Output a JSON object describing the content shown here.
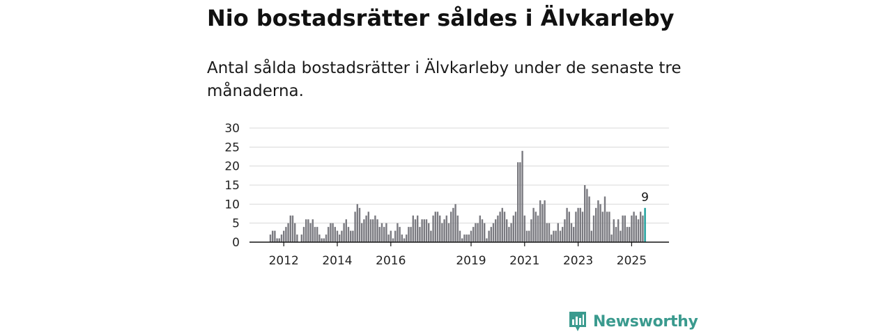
{
  "title": "Nio bostadsrätter såldes i Älvkarleby",
  "subtitle": "Antal sålda bostadsrätter i Älvkarleby under de senaste tre månaderna.",
  "brand": {
    "name": "Newsworthy",
    "icon": "newsworthy-logo-icon",
    "color": "#3a9a8e"
  },
  "colors": {
    "bar": "#7a7a80",
    "highlight": "#1a9e9a",
    "grid": "#d8d8d8",
    "axis": "#111111"
  },
  "chart_data": {
    "type": "bar",
    "title": "Nio bostadsrätter såldes i Älvkarleby",
    "ylabel": "",
    "xlabel": "",
    "ylim": [
      0,
      30
    ],
    "yticks": [
      0,
      5,
      10,
      15,
      20,
      25,
      30
    ],
    "xtick_labels": [
      "2012",
      "2014",
      "2016",
      "2019",
      "2021",
      "2023",
      "2025"
    ],
    "xtick_index": [
      6,
      30,
      54,
      90,
      114,
      138,
      162
    ],
    "values": [
      2,
      3,
      3,
      1,
      1,
      2,
      3,
      4,
      5,
      7,
      7,
      5,
      2,
      0,
      2,
      4,
      6,
      6,
      5,
      6,
      4,
      4,
      2,
      1,
      1,
      2,
      4,
      5,
      5,
      4,
      3,
      2,
      3,
      5,
      6,
      4,
      3,
      3,
      8,
      10,
      9,
      5,
      6,
      7,
      8,
      6,
      6,
      7,
      6,
      4,
      5,
      4,
      5,
      2,
      3,
      1,
      3,
      5,
      4,
      2,
      1,
      2,
      4,
      4,
      7,
      6,
      7,
      4,
      6,
      6,
      6,
      5,
      3,
      7,
      8,
      8,
      7,
      5,
      6,
      7,
      5,
      8,
      9,
      10,
      7,
      3,
      1,
      2,
      2,
      2,
      3,
      4,
      5,
      5,
      7,
      6,
      5,
      1,
      3,
      4,
      5,
      6,
      7,
      8,
      9,
      8,
      6,
      4,
      5,
      7,
      8,
      21,
      21,
      24,
      7,
      3,
      3,
      6,
      9,
      8,
      7,
      11,
      10,
      11,
      5,
      5,
      2,
      3,
      3,
      5,
      3,
      4,
      6,
      9,
      8,
      5,
      4,
      8,
      9,
      9,
      8,
      15,
      14,
      12,
      3,
      7,
      9,
      11,
      10,
      8,
      12,
      8,
      8,
      2,
      6,
      4,
      6,
      3,
      7,
      7,
      4,
      4,
      7,
      8,
      7,
      6,
      8,
      7,
      9
    ],
    "highlight_last": true,
    "last_value_label": "9"
  }
}
